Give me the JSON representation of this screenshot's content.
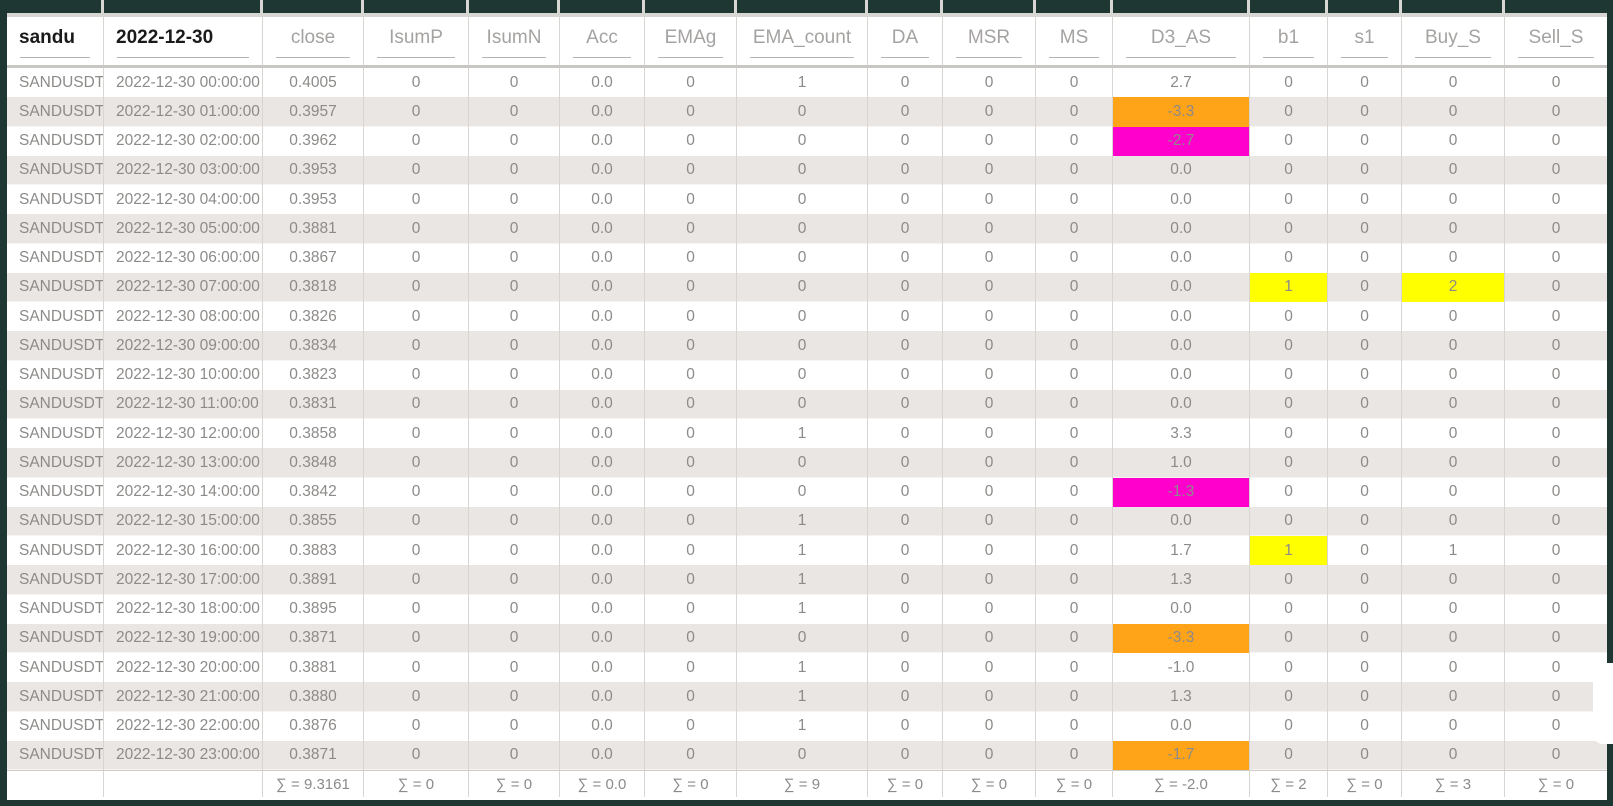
{
  "accent_colors": {
    "orange": "#ffa318",
    "magenta": "#ff00cc",
    "yellow": "#ffff00",
    "frame_dark_teal": "#1f3732"
  },
  "table": {
    "columns": [
      {
        "label": "sandu",
        "bold": true,
        "align": "left"
      },
      {
        "label": "2022-12-30",
        "bold": true,
        "align": "left"
      },
      {
        "label": "close"
      },
      {
        "label": "IsumP"
      },
      {
        "label": "IsumN"
      },
      {
        "label": "Acc"
      },
      {
        "label": "EMAg"
      },
      {
        "label": "EMA_count"
      },
      {
        "label": "DA"
      },
      {
        "label": "MSR"
      },
      {
        "label": "MS"
      },
      {
        "label": "D3_AS"
      },
      {
        "label": "b1"
      },
      {
        "label": "s1"
      },
      {
        "label": "Buy_S"
      },
      {
        "label": "Sell_S"
      }
    ],
    "rows": [
      [
        "SANDUSDT",
        "2022-12-30 00:00:00",
        "0.4005",
        "0",
        "0",
        "0.0",
        "0",
        "1",
        "0",
        "0",
        "0",
        "2.7",
        "0",
        "0",
        "0",
        "0"
      ],
      [
        "SANDUSDT",
        "2022-12-30 01:00:00",
        "0.3957",
        "0",
        "0",
        "0.0",
        "0",
        "0",
        "0",
        "0",
        "0",
        "-3.3",
        "0",
        "0",
        "0",
        "0"
      ],
      [
        "SANDUSDT",
        "2022-12-30 02:00:00",
        "0.3962",
        "0",
        "0",
        "0.0",
        "0",
        "0",
        "0",
        "0",
        "0",
        "-2.7",
        "0",
        "0",
        "0",
        "0"
      ],
      [
        "SANDUSDT",
        "2022-12-30 03:00:00",
        "0.3953",
        "0",
        "0",
        "0.0",
        "0",
        "0",
        "0",
        "0",
        "0",
        "0.0",
        "0",
        "0",
        "0",
        "0"
      ],
      [
        "SANDUSDT",
        "2022-12-30 04:00:00",
        "0.3953",
        "0",
        "0",
        "0.0",
        "0",
        "0",
        "0",
        "0",
        "0",
        "0.0",
        "0",
        "0",
        "0",
        "0"
      ],
      [
        "SANDUSDT",
        "2022-12-30 05:00:00",
        "0.3881",
        "0",
        "0",
        "0.0",
        "0",
        "0",
        "0",
        "0",
        "0",
        "0.0",
        "0",
        "0",
        "0",
        "0"
      ],
      [
        "SANDUSDT",
        "2022-12-30 06:00:00",
        "0.3867",
        "0",
        "0",
        "0.0",
        "0",
        "0",
        "0",
        "0",
        "0",
        "0.0",
        "0",
        "0",
        "0",
        "0"
      ],
      [
        "SANDUSDT",
        "2022-12-30 07:00:00",
        "0.3818",
        "0",
        "0",
        "0.0",
        "0",
        "0",
        "0",
        "0",
        "0",
        "0.0",
        "1",
        "0",
        "2",
        "0"
      ],
      [
        "SANDUSDT",
        "2022-12-30 08:00:00",
        "0.3826",
        "0",
        "0",
        "0.0",
        "0",
        "0",
        "0",
        "0",
        "0",
        "0.0",
        "0",
        "0",
        "0",
        "0"
      ],
      [
        "SANDUSDT",
        "2022-12-30 09:00:00",
        "0.3834",
        "0",
        "0",
        "0.0",
        "0",
        "0",
        "0",
        "0",
        "0",
        "0.0",
        "0",
        "0",
        "0",
        "0"
      ],
      [
        "SANDUSDT",
        "2022-12-30 10:00:00",
        "0.3823",
        "0",
        "0",
        "0.0",
        "0",
        "0",
        "0",
        "0",
        "0",
        "0.0",
        "0",
        "0",
        "0",
        "0"
      ],
      [
        "SANDUSDT",
        "2022-12-30 11:00:00",
        "0.3831",
        "0",
        "0",
        "0.0",
        "0",
        "0",
        "0",
        "0",
        "0",
        "0.0",
        "0",
        "0",
        "0",
        "0"
      ],
      [
        "SANDUSDT",
        "2022-12-30 12:00:00",
        "0.3858",
        "0",
        "0",
        "0.0",
        "0",
        "1",
        "0",
        "0",
        "0",
        "3.3",
        "0",
        "0",
        "0",
        "0"
      ],
      [
        "SANDUSDT",
        "2022-12-30 13:00:00",
        "0.3848",
        "0",
        "0",
        "0.0",
        "0",
        "0",
        "0",
        "0",
        "0",
        "1.0",
        "0",
        "0",
        "0",
        "0"
      ],
      [
        "SANDUSDT",
        "2022-12-30 14:00:00",
        "0.3842",
        "0",
        "0",
        "0.0",
        "0",
        "0",
        "0",
        "0",
        "0",
        "-1.3",
        "0",
        "0",
        "0",
        "0"
      ],
      [
        "SANDUSDT",
        "2022-12-30 15:00:00",
        "0.3855",
        "0",
        "0",
        "0.0",
        "0",
        "1",
        "0",
        "0",
        "0",
        "0.0",
        "0",
        "0",
        "0",
        "0"
      ],
      [
        "SANDUSDT",
        "2022-12-30 16:00:00",
        "0.3883",
        "0",
        "0",
        "0.0",
        "0",
        "1",
        "0",
        "0",
        "0",
        "1.7",
        "1",
        "0",
        "1",
        "0"
      ],
      [
        "SANDUSDT",
        "2022-12-30 17:00:00",
        "0.3891",
        "0",
        "0",
        "0.0",
        "0",
        "1",
        "0",
        "0",
        "0",
        "1.3",
        "0",
        "0",
        "0",
        "0"
      ],
      [
        "SANDUSDT",
        "2022-12-30 18:00:00",
        "0.3895",
        "0",
        "0",
        "0.0",
        "0",
        "1",
        "0",
        "0",
        "0",
        "0.0",
        "0",
        "0",
        "0",
        "0"
      ],
      [
        "SANDUSDT",
        "2022-12-30 19:00:00",
        "0.3871",
        "0",
        "0",
        "0.0",
        "0",
        "0",
        "0",
        "0",
        "0",
        "-3.3",
        "0",
        "0",
        "0",
        "0"
      ],
      [
        "SANDUSDT",
        "2022-12-30 20:00:00",
        "0.3881",
        "0",
        "0",
        "0.0",
        "0",
        "1",
        "0",
        "0",
        "0",
        "-1.0",
        "0",
        "0",
        "0",
        "0"
      ],
      [
        "SANDUSDT",
        "2022-12-30 21:00:00",
        "0.3880",
        "0",
        "0",
        "0.0",
        "0",
        "1",
        "0",
        "0",
        "0",
        "1.3",
        "0",
        "0",
        "0",
        "0"
      ],
      [
        "SANDUSDT",
        "2022-12-30 22:00:00",
        "0.3876",
        "0",
        "0",
        "0.0",
        "0",
        "1",
        "0",
        "0",
        "0",
        "0.0",
        "0",
        "0",
        "0",
        "0"
      ],
      [
        "SANDUSDT",
        "2022-12-30 23:00:00",
        "0.3871",
        "0",
        "0",
        "0.0",
        "0",
        "0",
        "0",
        "0",
        "0",
        "-1.7",
        "0",
        "0",
        "0",
        "0"
      ]
    ],
    "highlights": [
      {
        "row": 1,
        "col": 11,
        "color": "orange"
      },
      {
        "row": 2,
        "col": 11,
        "color": "magenta"
      },
      {
        "row": 7,
        "col": 12,
        "color": "yellow"
      },
      {
        "row": 7,
        "col": 14,
        "color": "yellow"
      },
      {
        "row": 14,
        "col": 11,
        "color": "magenta"
      },
      {
        "row": 16,
        "col": 12,
        "color": "yellow"
      },
      {
        "row": 19,
        "col": 11,
        "color": "orange"
      },
      {
        "row": 23,
        "col": 11,
        "color": "orange"
      }
    ],
    "footer": [
      "",
      "",
      "∑ = 9.3161",
      "∑ = 0",
      "∑ = 0",
      "∑ = 0.0",
      "∑ = 0",
      "∑ = 9",
      "∑ = 0",
      "∑ = 0",
      "∑ = 0",
      "∑ = -2.0",
      "∑ = 2",
      "∑ = 0",
      "∑ = 3",
      "∑ = 0"
    ]
  }
}
